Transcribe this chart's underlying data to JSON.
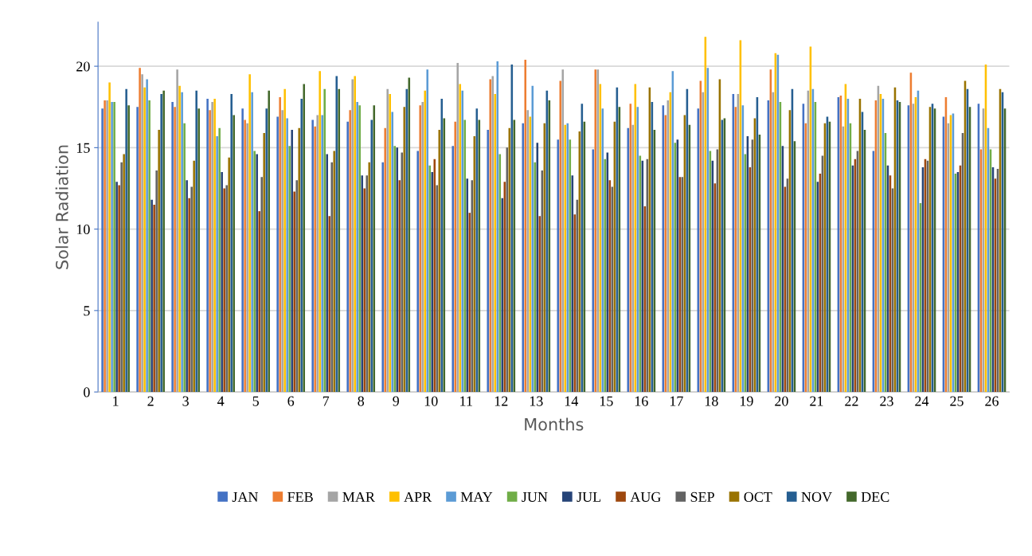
{
  "chart_data": {
    "type": "bar",
    "xlabel": "Months",
    "ylabel": "Solar Radiation",
    "categories": [
      "1",
      "2",
      "3",
      "4",
      "5",
      "6",
      "7",
      "8",
      "9",
      "10",
      "11",
      "12",
      "13",
      "14",
      "15",
      "16",
      "17",
      "18",
      "19",
      "20",
      "21",
      "22",
      "23",
      "24",
      "25",
      "26"
    ],
    "ylim": [
      0,
      22.7
    ],
    "yticks": [
      0,
      5,
      10,
      15,
      20
    ],
    "grid": "y",
    "legend": "bottom",
    "series": [
      {
        "name": "JAN",
        "color": "#4472c4",
        "values": [
          17.4,
          17.5,
          17.8,
          18.0,
          17.4,
          16.9,
          16.7,
          16.6,
          14.1,
          14.8,
          15.1,
          16.1,
          16.5,
          15.5,
          14.9,
          16.2,
          17.6,
          17.4,
          18.3,
          17.9,
          17.7,
          18.1,
          14.8,
          17.6,
          16.9,
          17.7
        ]
      },
      {
        "name": "FEB",
        "color": "#ed7d31",
        "values": [
          17.9,
          19.9,
          17.5,
          17.3,
          16.7,
          18.1,
          16.3,
          17.3,
          16.2,
          17.6,
          16.6,
          19.2,
          20.4,
          19.1,
          19.8,
          17.7,
          17.0,
          19.1,
          17.5,
          19.8,
          16.5,
          18.2,
          17.9,
          19.6,
          18.1,
          14.9
        ]
      },
      {
        "name": "MAR",
        "color": "#a5a5a5",
        "values": [
          17.9,
          19.5,
          19.8,
          17.8,
          16.5,
          17.3,
          17.0,
          19.2,
          18.6,
          17.8,
          20.2,
          19.4,
          17.3,
          19.8,
          19.8,
          16.4,
          17.9,
          18.4,
          18.3,
          18.4,
          18.5,
          16.3,
          18.8,
          17.7,
          16.5,
          17.4
        ]
      },
      {
        "name": "APR",
        "color": "#ffc000",
        "values": [
          19.0,
          18.7,
          18.8,
          18.0,
          19.5,
          18.6,
          19.7,
          19.4,
          18.3,
          18.5,
          18.9,
          18.3,
          16.9,
          16.4,
          18.9,
          18.9,
          18.4,
          21.8,
          21.6,
          20.8,
          21.2,
          18.9,
          18.3,
          18.1,
          17.0,
          20.1
        ]
      },
      {
        "name": "MAY",
        "color": "#5b9bd5",
        "values": [
          17.8,
          19.2,
          18.4,
          15.7,
          18.4,
          16.8,
          17.0,
          17.8,
          17.2,
          19.8,
          18.5,
          20.3,
          18.8,
          16.5,
          17.4,
          17.5,
          19.7,
          19.9,
          17.6,
          20.7,
          18.6,
          18.0,
          18.0,
          18.5,
          17.1,
          16.2
        ]
      },
      {
        "name": "JUN",
        "color": "#70ad47",
        "values": [
          17.8,
          17.9,
          16.5,
          16.2,
          14.8,
          15.1,
          18.6,
          17.6,
          15.1,
          13.9,
          16.7,
          14.6,
          14.1,
          15.5,
          14.3,
          14.5,
          15.3,
          14.8,
          14.6,
          17.8,
          17.8,
          16.5,
          15.9,
          11.6,
          13.4,
          14.9
        ]
      },
      {
        "name": "JUL",
        "color": "#264478",
        "values": [
          12.9,
          11.8,
          13.0,
          13.5,
          14.6,
          16.1,
          14.6,
          13.3,
          15.0,
          13.5,
          13.1,
          11.9,
          15.3,
          13.3,
          14.7,
          14.2,
          15.5,
          14.2,
          15.7,
          15.1,
          12.9,
          13.9,
          13.9,
          13.8,
          13.5,
          13.8
        ]
      },
      {
        "name": "AUG",
        "color": "#9e480e",
        "values": [
          12.7,
          11.5,
          11.9,
          12.5,
          11.1,
          12.3,
          10.8,
          12.5,
          13.0,
          14.3,
          11.0,
          12.9,
          10.8,
          10.9,
          13.0,
          11.4,
          13.2,
          12.8,
          13.8,
          12.6,
          13.4,
          14.3,
          13.3,
          14.3,
          13.9,
          13.1
        ]
      },
      {
        "name": "SEP",
        "color": "#636363",
        "values": [
          14.1,
          13.6,
          12.6,
          12.7,
          13.2,
          13.0,
          14.1,
          13.3,
          14.7,
          12.7,
          13.0,
          15.0,
          13.6,
          11.8,
          12.6,
          14.3,
          13.2,
          14.9,
          15.5,
          13.1,
          14.5,
          14.8,
          12.5,
          14.2,
          15.9,
          13.7
        ]
      },
      {
        "name": "OCT",
        "color": "#997300",
        "values": [
          14.6,
          16.1,
          14.2,
          14.4,
          15.9,
          16.2,
          14.8,
          14.1,
          17.5,
          16.1,
          15.7,
          16.2,
          16.5,
          16.0,
          16.6,
          18.7,
          17.0,
          19.2,
          16.8,
          17.3,
          16.5,
          18.0,
          18.7,
          17.5,
          19.1,
          18.6
        ]
      },
      {
        "name": "NOV",
        "color": "#255e91",
        "values": [
          18.6,
          18.3,
          18.5,
          18.3,
          17.4,
          18.0,
          19.4,
          16.7,
          18.6,
          18.0,
          17.4,
          20.1,
          18.5,
          17.7,
          18.7,
          17.8,
          18.6,
          16.7,
          18.1,
          18.6,
          16.9,
          17.2,
          17.9,
          17.7,
          18.6,
          18.4
        ]
      },
      {
        "name": "DEC",
        "color": "#43682b",
        "values": [
          17.6,
          18.5,
          17.4,
          17.0,
          18.5,
          18.9,
          18.6,
          17.6,
          19.3,
          16.8,
          16.7,
          16.7,
          17.9,
          16.6,
          17.5,
          16.1,
          16.4,
          16.8,
          15.8,
          15.4,
          16.6,
          16.1,
          17.8,
          17.4,
          17.5,
          17.4
        ]
      }
    ]
  }
}
